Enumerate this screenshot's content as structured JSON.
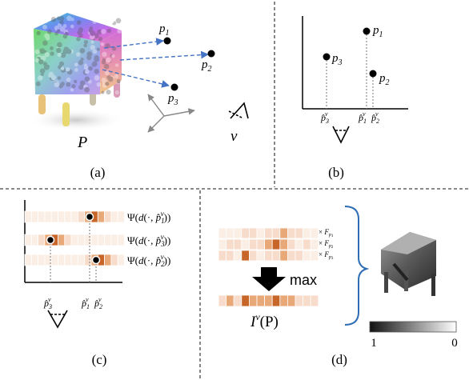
{
  "panels": {
    "a": {
      "caption": "(a)",
      "points": [
        "p_1",
        "p_2",
        "p_3"
      ],
      "point_label": "P",
      "view_label": "v"
    },
    "b": {
      "caption": "(b)",
      "points": [
        "p_1",
        "p_3",
        "p_2"
      ],
      "proj_labels": [
        "p̂_3^v",
        "p̂_1^v",
        "p̂_2^v"
      ]
    },
    "c": {
      "caption": "(c)",
      "rows": [
        {
          "label_prefix": "Ψ(d(·, ",
          "proj": "p̂",
          "sub": "1",
          "sup": "v",
          "label_suffix": "))"
        },
        {
          "label_prefix": "Ψ(d(·, ",
          "proj": "p̂",
          "sub": "3",
          "sup": "v",
          "label_suffix": "))"
        },
        {
          "label_prefix": "Ψ(d(·, ",
          "proj": "p̂",
          "sub": "2",
          "sup": "v",
          "label_suffix": "))"
        }
      ],
      "proj_labels": [
        "p̂_3^v",
        "p̂_1^v",
        "p̂_2^v"
      ]
    },
    "d": {
      "caption": "(d)",
      "multipliers": [
        {
          "prefix": "× F",
          "sub": "p₁"
        },
        {
          "prefix": "× F",
          "sub": "p₂"
        },
        {
          "prefix": "× F",
          "sub": "p₃"
        }
      ],
      "op_label": "max",
      "output_label": "I",
      "output_sup": "v",
      "output_arg": "(P)",
      "colorbar": {
        "left": "1",
        "right": "0"
      }
    }
  },
  "colors": {
    "arrow_blue": "#4472c4",
    "brace_blue": "#2e6db4",
    "cell_dark": "#c8662a",
    "cell_mid": "#e8a878",
    "cell_light": "#f7dccb",
    "cell_pale": "#fbeee5"
  }
}
